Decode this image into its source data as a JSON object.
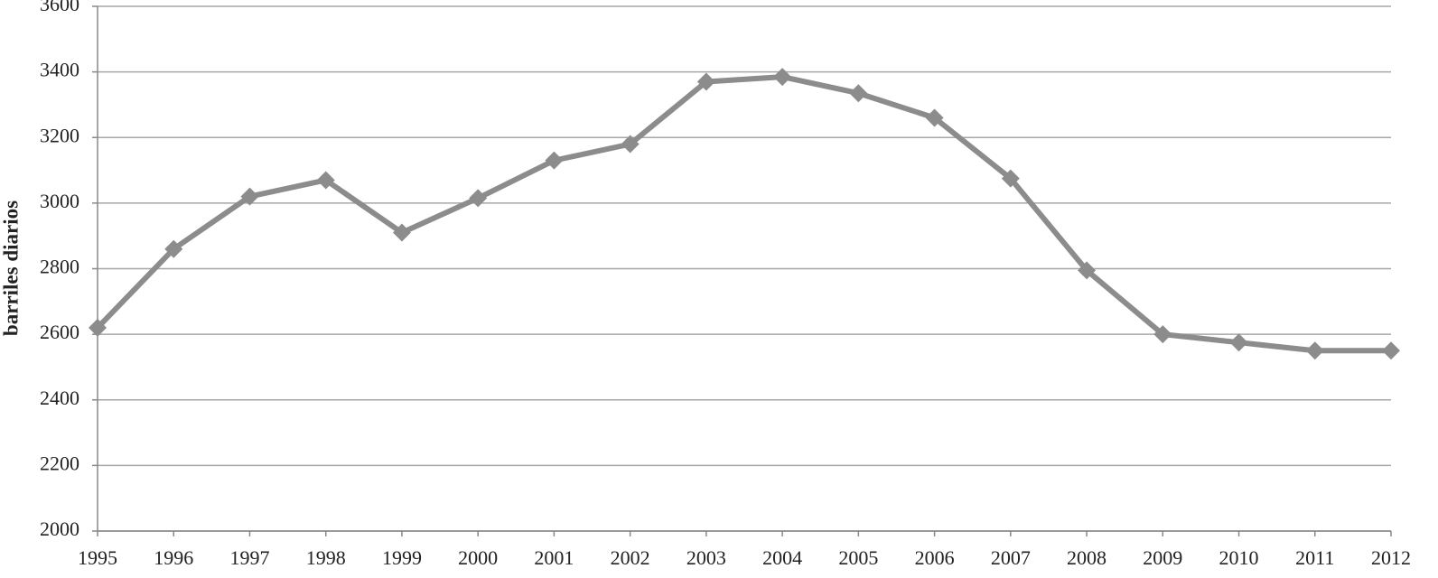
{
  "chart_data": {
    "type": "line",
    "y_label": "barriles diarios",
    "x": [
      1995,
      1996,
      1997,
      1998,
      1999,
      2000,
      2001,
      2002,
      2003,
      2004,
      2005,
      2006,
      2007,
      2008,
      2009,
      2010,
      2011,
      2012
    ],
    "series": [
      {
        "color": "#8c8c8c",
        "values": [
          2620,
          2860,
          3020,
          3070,
          2910,
          3015,
          3130,
          3180,
          3370,
          3385,
          3335,
          3260,
          3075,
          2795,
          2600,
          2575,
          2550,
          2550
        ]
      }
    ],
    "xlim": [
      1995,
      2012
    ],
    "xticks": [
      1995,
      1996,
      1997,
      1998,
      1999,
      2000,
      2001,
      2002,
      2003,
      2004,
      2005,
      2006,
      2007,
      2008,
      2009,
      2010,
      2011,
      2012
    ],
    "ylim": [
      2000,
      3600
    ],
    "yticks": [
      2000,
      2200,
      2400,
      2600,
      2800,
      3000,
      3200,
      3400,
      3600
    ],
    "grid": true
  }
}
